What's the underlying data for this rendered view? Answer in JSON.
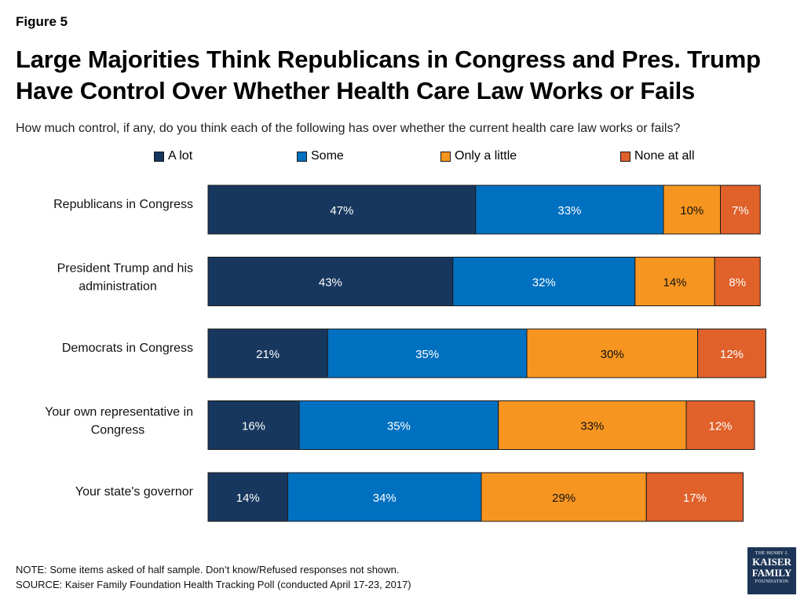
{
  "figure_label": "Figure 5",
  "chart_data": {
    "type": "bar",
    "orientation": "horizontal",
    "stacked": true,
    "title": "Large Majorities Think Republicans in Congress and Pres. Trump Have Control Over Whether Health Care Law Works or Fails",
    "subtitle": "How much control, if any, do you think each of the following has over whether the current health care law works or fails?",
    "categories": [
      "Republicans in Congress",
      "President Trump and his administration",
      "Democrats in Congress",
      "Your own representative in Congress",
      "Your state's governor"
    ],
    "series": [
      {
        "name": "A lot",
        "color": "#17375e",
        "values": [
          47,
          43,
          21,
          16,
          14
        ]
      },
      {
        "name": "Some",
        "color": "#0070c0",
        "values": [
          33,
          32,
          35,
          35,
          34
        ]
      },
      {
        "name": "Only a little",
        "color": "#f79521",
        "values": [
          10,
          14,
          30,
          33,
          29
        ]
      },
      {
        "name": "None at all",
        "color": "#e0612a",
        "values": [
          7,
          8,
          12,
          12,
          17
        ]
      }
    ],
    "value_suffix": "%",
    "legend_position": "top",
    "grid": false,
    "xlim": [
      0,
      100
    ]
  },
  "notes": {
    "note": "NOTE: Some items asked of half sample. Don’t know/Refused responses not shown.",
    "source": "SOURCE: Kaiser Family Foundation Health Tracking Poll (conducted April 17-23, 2017)"
  },
  "logo": {
    "line1": "THE HENRY J.",
    "line2": "KAISER",
    "line3": "FAMILY",
    "line4": "FOUNDATION"
  }
}
